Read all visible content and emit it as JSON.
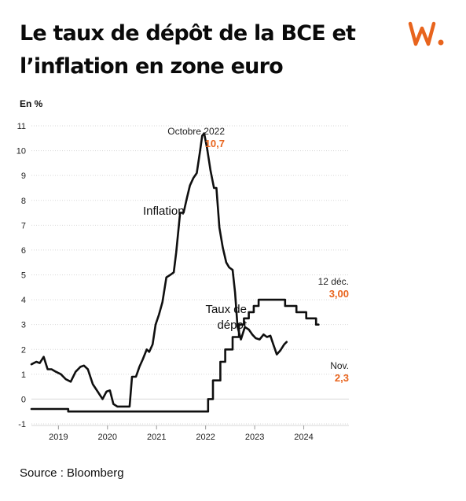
{
  "header": {
    "title": "Le taux de dépôt de la BCE et l’inflation en zone euro",
    "logo": "w-logo"
  },
  "footer": {
    "source": "Source : Bloomberg"
  },
  "colors": {
    "accent": "#e8641d",
    "line": "#0f0f0f",
    "grid": "#d7d7d7",
    "text": "#222222"
  },
  "chart_data": {
    "type": "line",
    "unit_label": "En %",
    "ylim": [
      -1,
      11
    ],
    "y_ticks": [
      -1,
      0,
      1,
      2,
      3,
      4,
      5,
      6,
      7,
      8,
      9,
      10,
      11
    ],
    "xlim": [
      2018.45,
      2024.92
    ],
    "x_ticks": [
      {
        "label": "2019",
        "pos": 2019.0
      },
      {
        "label": "2020",
        "pos": 2020.0
      },
      {
        "label": "2021",
        "pos": 2021.0
      },
      {
        "label": "2022",
        "pos": 2022.0
      },
      {
        "label": "2023",
        "pos": 2023.0
      },
      {
        "label": "2024",
        "pos": 2024.0
      }
    ],
    "grid": "horizontal",
    "series": [
      {
        "name": "Inflation",
        "label_lines": [
          "Inflation"
        ],
        "style": "line",
        "points": [
          [
            2018.45,
            1.4
          ],
          [
            2018.55,
            1.5
          ],
          [
            2018.62,
            1.45
          ],
          [
            2018.7,
            1.7
          ],
          [
            2018.78,
            1.2
          ],
          [
            2018.86,
            1.2
          ],
          [
            2018.95,
            1.1
          ],
          [
            2019.05,
            1.0
          ],
          [
            2019.15,
            0.8
          ],
          [
            2019.25,
            0.7
          ],
          [
            2019.35,
            1.1
          ],
          [
            2019.45,
            1.3
          ],
          [
            2019.52,
            1.35
          ],
          [
            2019.6,
            1.2
          ],
          [
            2019.7,
            0.6
          ],
          [
            2019.8,
            0.3
          ],
          [
            2019.9,
            0.0
          ],
          [
            2019.98,
            0.3
          ],
          [
            2020.05,
            0.35
          ],
          [
            2020.12,
            -0.2
          ],
          [
            2020.2,
            -0.3
          ],
          [
            2020.3,
            -0.3
          ],
          [
            2020.38,
            -0.3
          ],
          [
            2020.45,
            -0.3
          ],
          [
            2020.5,
            0.9
          ],
          [
            2020.58,
            0.9
          ],
          [
            2020.65,
            1.3
          ],
          [
            2020.72,
            1.6
          ],
          [
            2020.8,
            2.0
          ],
          [
            2020.85,
            1.9
          ],
          [
            2020.92,
            2.2
          ],
          [
            2020.98,
            3.0
          ],
          [
            2021.05,
            3.4
          ],
          [
            2021.12,
            3.9
          ],
          [
            2021.2,
            4.9
          ],
          [
            2021.28,
            5.0
          ],
          [
            2021.35,
            5.1
          ],
          [
            2021.4,
            5.9
          ],
          [
            2021.48,
            7.5
          ],
          [
            2021.55,
            7.5
          ],
          [
            2021.62,
            8.1
          ],
          [
            2021.68,
            8.6
          ],
          [
            2021.75,
            8.9
          ],
          [
            2021.82,
            9.1
          ],
          [
            2021.88,
            9.9
          ],
          [
            2021.93,
            10.6
          ],
          [
            2021.97,
            10.7
          ],
          [
            2022.03,
            10.1
          ],
          [
            2022.1,
            9.2
          ],
          [
            2022.17,
            8.5
          ],
          [
            2022.22,
            8.5
          ],
          [
            2022.28,
            6.9
          ],
          [
            2022.35,
            6.1
          ],
          [
            2022.42,
            5.5
          ],
          [
            2022.48,
            5.3
          ],
          [
            2022.55,
            5.2
          ],
          [
            2022.6,
            4.3
          ],
          [
            2022.65,
            2.9
          ],
          [
            2022.72,
            2.4
          ],
          [
            2022.8,
            2.9
          ],
          [
            2022.88,
            2.8
          ],
          [
            2022.95,
            2.6
          ],
          [
            2023.02,
            2.45
          ],
          [
            2023.1,
            2.4
          ],
          [
            2023.18,
            2.6
          ],
          [
            2023.25,
            2.5
          ],
          [
            2023.32,
            2.55
          ],
          [
            2023.38,
            2.2
          ],
          [
            2023.45,
            1.8
          ],
          [
            2023.52,
            1.95
          ],
          [
            2023.6,
            2.2
          ],
          [
            2023.65,
            2.3
          ]
        ]
      },
      {
        "name": "Taux de dépôt",
        "label_lines": [
          "Taux de",
          "dépot"
        ],
        "style": "step",
        "points": [
          [
            2018.45,
            -0.4
          ],
          [
            2019.2,
            -0.4
          ],
          [
            2019.2,
            -0.5
          ],
          [
            2022.05,
            -0.5
          ],
          [
            2022.05,
            0.0
          ],
          [
            2022.15,
            0.0
          ],
          [
            2022.15,
            0.75
          ],
          [
            2022.3,
            0.75
          ],
          [
            2022.3,
            1.5
          ],
          [
            2022.4,
            1.5
          ],
          [
            2022.4,
            2.0
          ],
          [
            2022.55,
            2.0
          ],
          [
            2022.55,
            2.5
          ],
          [
            2022.68,
            2.5
          ],
          [
            2022.68,
            3.0
          ],
          [
            2022.78,
            3.0
          ],
          [
            2022.78,
            3.25
          ],
          [
            2022.88,
            3.25
          ],
          [
            2022.88,
            3.5
          ],
          [
            2022.98,
            3.5
          ],
          [
            2022.98,
            3.75
          ],
          [
            2023.08,
            3.75
          ],
          [
            2023.08,
            4.0
          ],
          [
            2023.62,
            4.0
          ],
          [
            2023.62,
            3.75
          ],
          [
            2023.85,
            3.75
          ],
          [
            2023.85,
            3.5
          ],
          [
            2024.05,
            3.5
          ],
          [
            2024.05,
            3.25
          ],
          [
            2024.25,
            3.25
          ],
          [
            2024.25,
            3.0
          ],
          [
            2024.3,
            3.0
          ]
        ]
      }
    ],
    "annotations": [
      {
        "label": "Octobre 2022",
        "value": "10,7"
      },
      {
        "label": "12 déc.",
        "value": "3,00"
      },
      {
        "label": "Nov.",
        "value": "2,3"
      }
    ]
  }
}
